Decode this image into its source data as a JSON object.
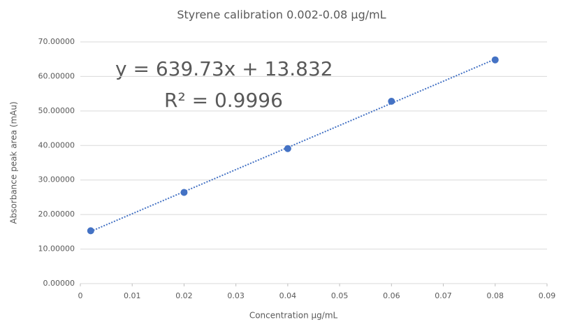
{
  "chart_data": {
    "type": "scatter",
    "title": "Styrene calibration 0.002-0.08 µg/mL",
    "x_label": "Concentration µg/mL",
    "y_label": "Absorbance peak area (mAu)",
    "annotations": [
      "y = 639.73x + 13.832",
      "R² = 0.9996"
    ],
    "series": [
      {
        "name": "Styrene",
        "color": "#4472c4",
        "x": [
          0.002,
          0.02,
          0.04,
          0.06,
          0.08
        ],
        "values": [
          15.3,
          26.4,
          39.1,
          52.8,
          64.8
        ]
      }
    ],
    "trendline": {
      "x": [
        0.002,
        0.08
      ],
      "y": [
        15.11,
        65.01
      ],
      "color": "#4472c4"
    },
    "xlim": [
      0,
      0.09
    ],
    "xticks": [
      0,
      0.01,
      0.02,
      0.03,
      0.04,
      0.05,
      0.06,
      0.07,
      0.08,
      0.09
    ],
    "ylim": [
      0,
      70
    ],
    "yticks": [
      {
        "value": 0,
        "label": "0.00000"
      },
      {
        "value": 10,
        "label": "10.00000"
      },
      {
        "value": 20,
        "label": "20.00000"
      },
      {
        "value": 30,
        "label": "30.00000"
      },
      {
        "value": 40,
        "label": "40.00000"
      },
      {
        "value": 50,
        "label": "50.00000"
      },
      {
        "value": 60,
        "label": "60.00000"
      },
      {
        "value": 70,
        "label": "70.00000"
      }
    ],
    "grid": true
  }
}
